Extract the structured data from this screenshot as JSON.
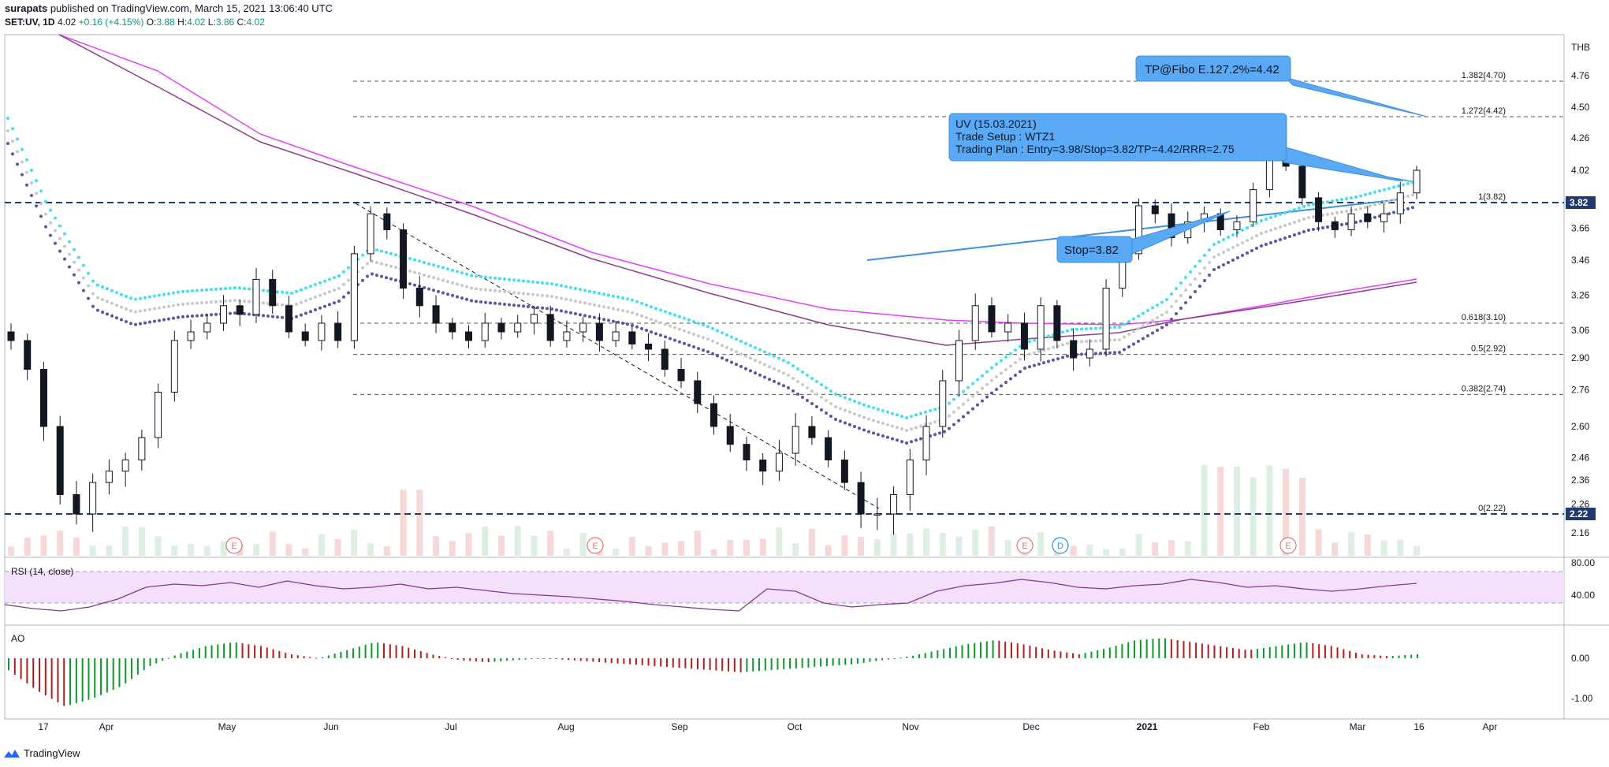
{
  "header": {
    "author": "surapats",
    "published_text": "published on TradingView.com, March 15, 2021 13:06:40 UTC",
    "symbol": "SET:UV, 1D",
    "last": "4.02",
    "change": "+0.16 (+4.15%)",
    "o_label": "O:",
    "o_val": "3.88",
    "h_label": "H:",
    "h_val": "4.02",
    "l_label": "L:",
    "l_val": "3.86",
    "c_label": "C:",
    "c_val": "4.02"
  },
  "footer": {
    "brand": "TradingView"
  },
  "chart_data": {
    "type": "candlestick",
    "currency": "THB",
    "y_ticks": [
      "4.76",
      "4.50",
      "4.26",
      "4.02",
      "3.82",
      "3.66",
      "3.46",
      "3.26",
      "3.06",
      "2.90",
      "2.76",
      "2.60",
      "2.46",
      "2.36",
      "2.26",
      "2.16"
    ],
    "x_ticks": [
      "17",
      "Apr",
      "May",
      "Jun",
      "Jul",
      "Aug",
      "Sep",
      "Oct",
      "Nov",
      "Dec",
      "2021",
      "Feb",
      "Mar",
      "16",
      "Apr"
    ],
    "price_tags": [
      "3.82",
      "2.22"
    ],
    "fib_levels": [
      {
        "label": "1.382(4.70)",
        "price": 4.7
      },
      {
        "label": "1.272(4.42)",
        "price": 4.42
      },
      {
        "label": "1(3.82)",
        "price": 3.82
      },
      {
        "label": "0.618(3.10)",
        "price": 3.1
      },
      {
        "label": "0.5(2.92)",
        "price": 2.92
      },
      {
        "label": "0.382(2.74)",
        "price": 2.74
      },
      {
        "label": "0(2.22)",
        "price": 2.22
      }
    ],
    "annotations": {
      "tp_box": "TP@Fibo E.127.2%=4.42",
      "plan_lines": [
        "UV (15.03.2021)",
        "Trade Setup : WTZ1",
        "Trading Plan : Entry=3.98/Stop=3.82/TP=4.42/RRR=2.75"
      ],
      "stop_box": "Stop=3.82"
    },
    "event_markers": [
      "E",
      "E",
      "E",
      "D",
      "E"
    ],
    "ohlc_last": {
      "open": 3.88,
      "high": 4.02,
      "low": 3.86,
      "close": 4.02
    },
    "close_series_approx": [
      3.0,
      2.85,
      2.6,
      2.3,
      2.22,
      2.35,
      2.4,
      2.45,
      2.55,
      2.75,
      3.0,
      3.05,
      3.1,
      3.2,
      3.15,
      3.35,
      3.2,
      3.05,
      3.0,
      3.1,
      3.0,
      3.5,
      3.75,
      3.65,
      3.3,
      3.2,
      3.1,
      3.05,
      3.0,
      3.1,
      3.05,
      3.1,
      3.15,
      3.0,
      3.05,
      3.1,
      3.0,
      3.05,
      2.98,
      2.95,
      2.85,
      2.8,
      2.7,
      2.6,
      2.52,
      2.45,
      2.4,
      2.48,
      2.6,
      2.55,
      2.45,
      2.35,
      2.22,
      2.22,
      2.3,
      2.45,
      2.6,
      2.8,
      3.0,
      3.2,
      3.05,
      3.1,
      2.95,
      3.2,
      3.0,
      2.9,
      2.95,
      3.3,
      3.5,
      3.8,
      3.75,
      3.6,
      3.7,
      3.75,
      3.65,
      3.7,
      3.9,
      4.1,
      4.05,
      3.85,
      3.7,
      3.65,
      3.75,
      3.7,
      3.75,
      3.88,
      4.02
    ],
    "indicators": {
      "rsi": {
        "name": "RSI (14, close)",
        "levels": [
          "80.00",
          "40.00"
        ],
        "values_approx": [
          38,
          33,
          30,
          35,
          45,
          60,
          64,
          62,
          66,
          60,
          68,
          62,
          58,
          60,
          64,
          58,
          60,
          56,
          52,
          50,
          48,
          45,
          42,
          38,
          35,
          32,
          30,
          58,
          55,
          40,
          35,
          38,
          40,
          55,
          62,
          65,
          70,
          66,
          60,
          58,
          62,
          64,
          70,
          66,
          60,
          62,
          58,
          55,
          58,
          62,
          65
        ]
      },
      "ao": {
        "name": "AO",
        "levels": [
          "0.00",
          "-1.00"
        ],
        "values_approx": [
          -0.3,
          -0.8,
          -1.2,
          -1.0,
          -0.7,
          -0.2,
          0.1,
          0.3,
          0.4,
          0.3,
          0.1,
          0.0,
          0.2,
          0.4,
          0.3,
          0.1,
          -0.05,
          -0.1,
          -0.05,
          0.0,
          -0.05,
          -0.1,
          -0.15,
          -0.2,
          -0.25,
          -0.3,
          -0.35,
          -0.3,
          -0.25,
          -0.2,
          -0.15,
          -0.05,
          0.05,
          0.2,
          0.35,
          0.45,
          0.35,
          0.2,
          0.1,
          0.25,
          0.45,
          0.5,
          0.4,
          0.3,
          0.2,
          0.3,
          0.4,
          0.3,
          0.1,
          0.05,
          0.1
        ]
      }
    },
    "colors": {
      "up": "#089981",
      "down": "#131722",
      "ma_fast": "#e040fb",
      "ma_slow": "#8e3a8e",
      "dots1": "#40e0f0",
      "dots2": "#c8c8c8",
      "dots3": "#5a55a8",
      "annotation": "#5aa9f5",
      "rsi_band": "#f4e0fa",
      "dashed_blue": "#1e3a6e"
    }
  }
}
